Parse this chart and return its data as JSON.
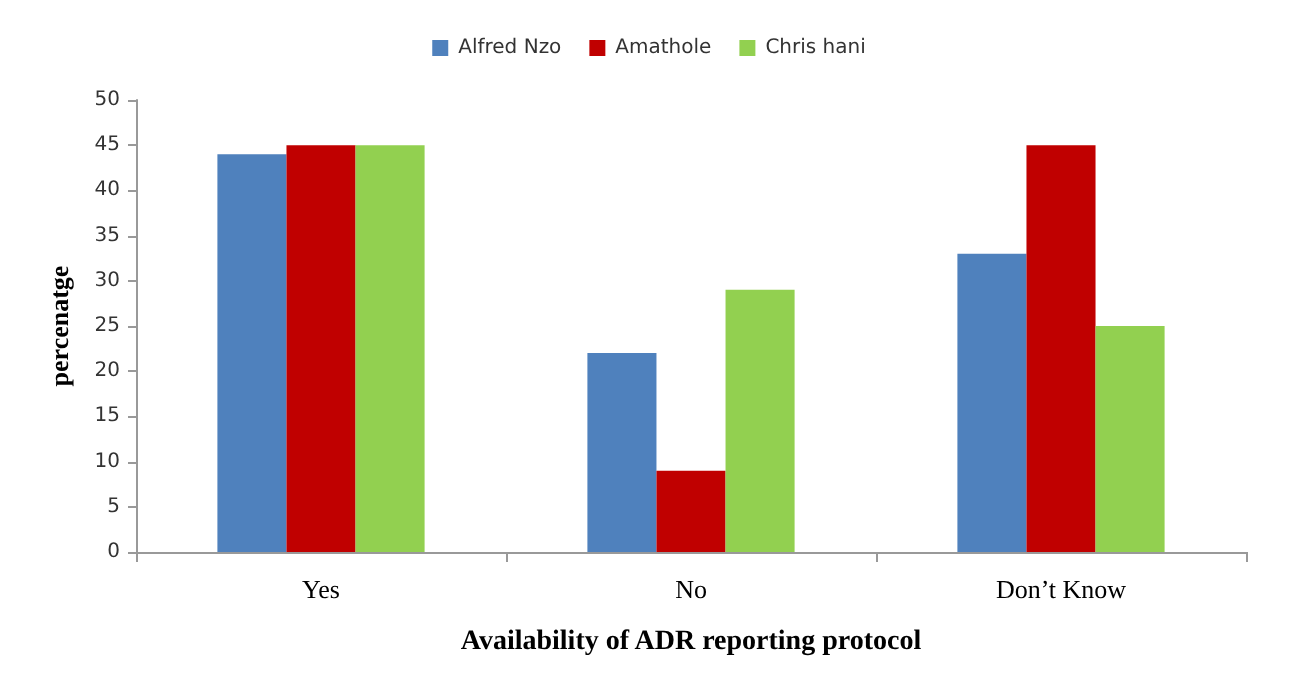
{
  "chart_data": {
    "type": "bar",
    "xlabel": "Availability of ADR reporting protocol",
    "ylabel": "percenatge",
    "categories": [
      "Yes",
      "No",
      "Don’t Know"
    ],
    "series": [
      {
        "name": "Alfred Nzo",
        "color": "#4f81bd",
        "values": [
          44,
          22,
          33
        ]
      },
      {
        "name": "Amathole",
        "color": "#c00000",
        "values": [
          45,
          9,
          45
        ]
      },
      {
        "name": "Chris hani",
        "color": "#92d050",
        "values": [
          45,
          29,
          25
        ]
      }
    ],
    "ylim": [
      0,
      50
    ],
    "yticks": [
      0,
      5,
      10,
      15,
      20,
      25,
      30,
      35,
      40,
      45,
      50
    ],
    "grid": false,
    "legend": "top"
  }
}
